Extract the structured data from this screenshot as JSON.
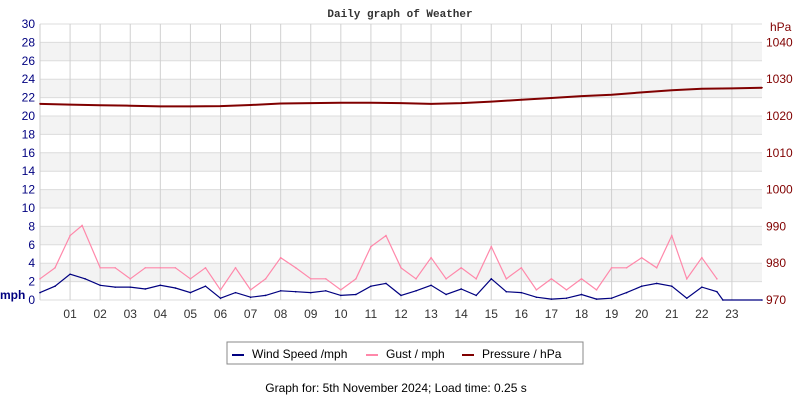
{
  "chart_data": {
    "type": "line",
    "title": "Daily graph of Weather",
    "left_axis": {
      "label": "mph",
      "range": [
        0,
        30
      ],
      "ticks": [
        0,
        2,
        4,
        6,
        8,
        10,
        12,
        14,
        16,
        18,
        20,
        22,
        24,
        26,
        28,
        30
      ],
      "color": "#000080"
    },
    "right_axis": {
      "label": "hPa",
      "range": [
        970,
        1045
      ],
      "ticks": [
        970,
        980,
        990,
        1000,
        1010,
        1020,
        1030,
        1040
      ],
      "color": "#800000"
    },
    "x_ticks": [
      "01",
      "02",
      "03",
      "04",
      "05",
      "06",
      "07",
      "08",
      "09",
      "10",
      "11",
      "12",
      "13",
      "14",
      "15",
      "16",
      "17",
      "18",
      "19",
      "20",
      "21",
      "22",
      "23"
    ],
    "x_range": [
      0,
      24
    ],
    "grid": true,
    "legend_placement": "bottom",
    "series": [
      {
        "name": "Wind Speed /mph",
        "axis": "left",
        "color": "#000080",
        "x": [
          0,
          0.5,
          1,
          1.5,
          2,
          2.5,
          3,
          3.5,
          4,
          4.5,
          5,
          5.5,
          6,
          6.5,
          7,
          7.5,
          8,
          8.5,
          9,
          9.5,
          10,
          10.5,
          11,
          11.5,
          12,
          12.5,
          13,
          13.5,
          14,
          14.5,
          15,
          15.5,
          16,
          16.5,
          17,
          17.5,
          18,
          18.5,
          19,
          19.5,
          20,
          20.5,
          21,
          21.5,
          22,
          22.5,
          22.7,
          24
        ],
        "values": [
          0.8,
          1.5,
          2.8,
          2.3,
          1.6,
          1.4,
          1.4,
          1.2,
          1.6,
          1.3,
          0.8,
          1.5,
          0.2,
          0.8,
          0.3,
          0.5,
          1.0,
          0.9,
          0.8,
          1.0,
          0.5,
          0.6,
          1.5,
          1.8,
          0.5,
          1.0,
          1.6,
          0.6,
          1.2,
          0.5,
          2.3,
          0.9,
          0.8,
          0.3,
          0.1,
          0.2,
          0.6,
          0.1,
          0.2,
          0.8,
          1.5,
          1.8,
          1.5,
          0.2,
          1.4,
          0.9,
          0,
          0
        ]
      },
      {
        "name": "Gust / mph",
        "axis": "left",
        "color": "#ff88aa",
        "x": [
          0,
          0.5,
          1,
          1.4,
          2,
          2.5,
          3,
          3.5,
          4,
          4.5,
          5,
          5.5,
          6,
          6.5,
          7,
          7.5,
          8,
          8.5,
          9,
          9.5,
          10,
          10.5,
          11,
          11.5,
          12,
          12.5,
          13,
          13.5,
          14,
          14.5,
          15,
          15.5,
          16,
          16.5,
          17,
          17.5,
          18,
          18.5,
          19,
          19.5,
          20,
          20.5,
          21,
          21.5,
          22,
          22.5
        ],
        "values": [
          2.3,
          3.5,
          7.0,
          8.1,
          3.5,
          3.5,
          2.3,
          3.5,
          3.5,
          3.5,
          2.3,
          3.5,
          1.1,
          3.5,
          1.1,
          2.3,
          4.6,
          3.5,
          2.3,
          2.3,
          1.1,
          2.3,
          5.8,
          7.0,
          3.5,
          2.3,
          4.6,
          2.3,
          3.5,
          2.3,
          5.8,
          2.3,
          3.5,
          1.1,
          2.3,
          1.1,
          2.3,
          1.1,
          3.5,
          3.5,
          4.6,
          3.5,
          7.0,
          2.3,
          4.6,
          2.3
        ]
      },
      {
        "name": "Pressure / hPa",
        "axis": "right",
        "color": "#800000",
        "x": [
          0,
          1,
          2,
          3,
          4,
          5,
          6,
          7,
          8,
          9,
          10,
          11,
          12,
          13,
          14,
          15,
          16,
          17,
          18,
          19,
          20,
          21,
          22,
          23,
          24
        ],
        "values": [
          1023.3,
          1023.1,
          1022.9,
          1022.8,
          1022.6,
          1022.6,
          1022.7,
          1023.0,
          1023.4,
          1023.5,
          1023.6,
          1023.6,
          1023.5,
          1023.3,
          1023.5,
          1023.9,
          1024.4,
          1024.9,
          1025.4,
          1025.8,
          1026.4,
          1027.0,
          1027.4,
          1027.5,
          1027.7
        ]
      }
    ]
  },
  "footer": "Graph for: 5th November 2024; Load time: 0.25 s"
}
